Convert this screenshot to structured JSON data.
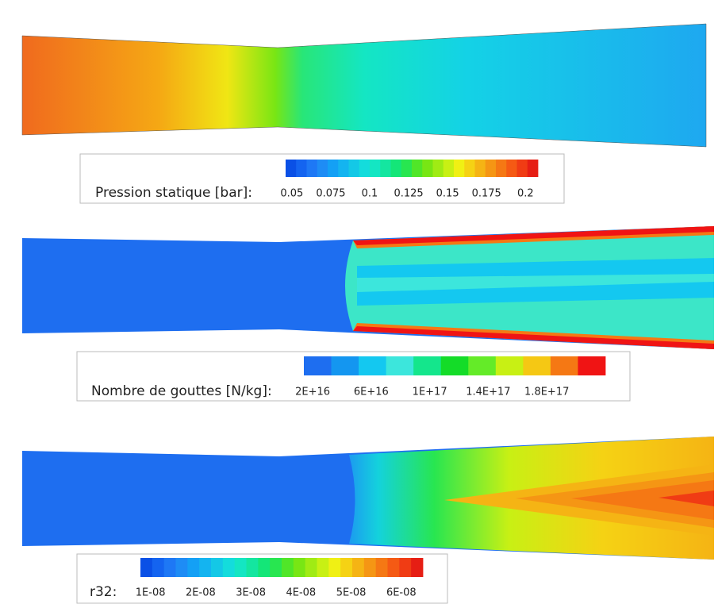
{
  "chart_data": [
    {
      "type": "contour",
      "colorbar": {
        "label": "Pression statique [bar]:",
        "lim": [
          0.046,
          0.208
        ],
        "ticks": [
          0.05,
          0.075,
          0.1,
          0.125,
          0.15,
          0.175,
          0.2
        ],
        "colors": [
          "#0a50e6",
          "#1464f0",
          "#1e78f5",
          "#1e8cf5",
          "#14a0f5",
          "#14b4f0",
          "#14c8e6",
          "#14dcdc",
          "#14e6c3",
          "#14e6a0",
          "#14e678",
          "#28e650",
          "#50e628",
          "#78e614",
          "#a0eb14",
          "#c8f014",
          "#f0f014",
          "#f5d214",
          "#f5b414",
          "#f59614",
          "#f57814",
          "#f55a14",
          "#f03c14",
          "#e61e14"
        ]
      }
    },
    {
      "type": "contour",
      "colorbar": {
        "label": "Nombre de gouttes [N/kg]:",
        "lim": [
          14000000000000000,
          220000000000000000
        ],
        "ticks": [
          {
            "value": 20000000000000000,
            "label": "2E+16"
          },
          {
            "value": 60000000000000000,
            "label": "6E+16"
          },
          {
            "value": 100000000000000000,
            "label": "1E+17"
          },
          {
            "value": 140000000000000000,
            "label": "1.4E+17"
          },
          {
            "value": 180000000000000000,
            "label": "1.8E+17"
          }
        ],
        "colors": [
          "#1e6ef0",
          "#1496f0",
          "#14c8f0",
          "#3ce6dc",
          "#14e68c",
          "#14dc28",
          "#64eb28",
          "#c8f014",
          "#f5c814",
          "#f57814",
          "#f01414"
        ]
      }
    },
    {
      "type": "contour",
      "colorbar": {
        "label": "r32:",
        "lim": [
          8e-09,
          6.43e-08
        ],
        "ticks": [
          {
            "value": 1e-08,
            "label": "1E-08"
          },
          {
            "value": 2e-08,
            "label": "2E-08"
          },
          {
            "value": 3e-08,
            "label": "3E-08"
          },
          {
            "value": 4e-08,
            "label": "4E-08"
          },
          {
            "value": 5e-08,
            "label": "5E-08"
          },
          {
            "value": 6e-08,
            "label": "6E-08"
          }
        ],
        "colors": [
          "#0a50e6",
          "#1464f0",
          "#1e78f5",
          "#1e8cf5",
          "#14a0f5",
          "#14b4f0",
          "#14c8e6",
          "#14dcdc",
          "#14e6c3",
          "#14e6a0",
          "#14e678",
          "#28e650",
          "#50e628",
          "#78e614",
          "#a0eb14",
          "#c8f014",
          "#f0f014",
          "#f5d214",
          "#f5b414",
          "#f59614",
          "#f57814",
          "#f55a14",
          "#f03c14",
          "#e61e14"
        ]
      }
    }
  ]
}
